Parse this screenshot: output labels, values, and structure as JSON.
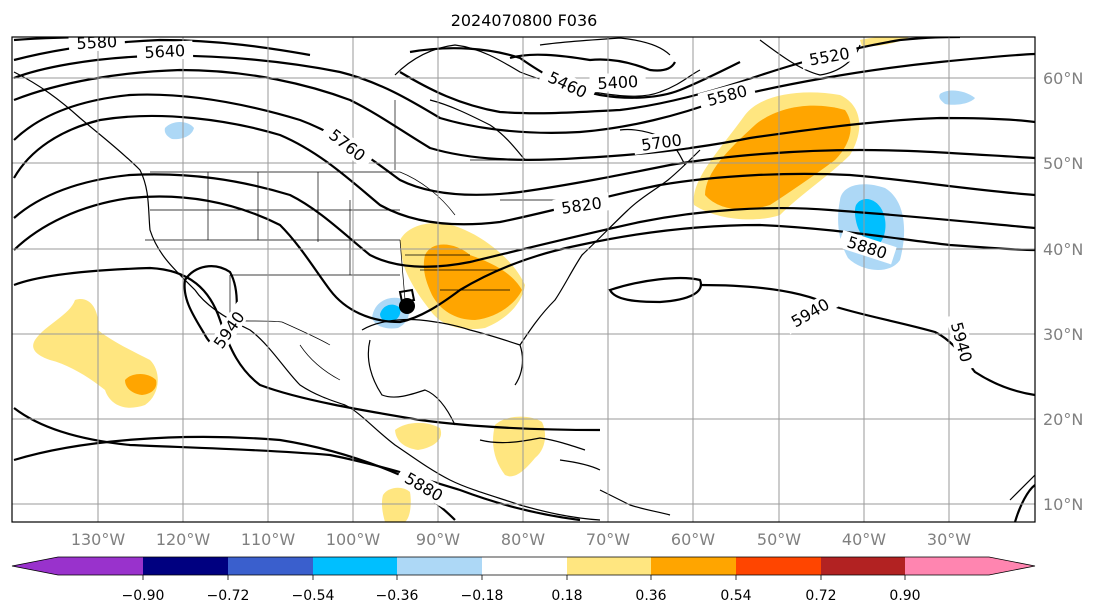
{
  "title": "2024070800 F036",
  "colors": {
    "neg_090": "#9932CC",
    "neg_072": "#000080",
    "neg_054": "#3A5FCD",
    "neg_036": "#00BFFF",
    "neg_018": "#ADD8F6",
    "zero": "#FFFFFF",
    "pos_018": "#FFE680",
    "pos_036": "#FFA500",
    "pos_054": "#FF4500",
    "pos_072": "#B22222",
    "pos_090": "#FF85B0"
  },
  "lat_labels": [
    "60°N",
    "50°N",
    "40°N",
    "30°N",
    "20°N",
    "10°N"
  ],
  "lon_labels": [
    "130°W",
    "120°W",
    "110°W",
    "100°W",
    "90°W",
    "80°W",
    "70°W",
    "60°W",
    "50°W",
    "40°W",
    "30°W"
  ],
  "contour_labels": [
    "5580",
    "5640",
    "5460",
    "5400",
    "5520",
    "5580",
    "5760",
    "5700",
    "5820",
    "5880",
    "5940",
    "5940",
    "5940",
    "5880"
  ],
  "colorbar_labels": [
    "−0.90",
    "−0.72",
    "−0.54",
    "−0.36",
    "−0.18",
    "0.18",
    "0.36",
    "0.54",
    "0.72",
    "0.90"
  ]
}
